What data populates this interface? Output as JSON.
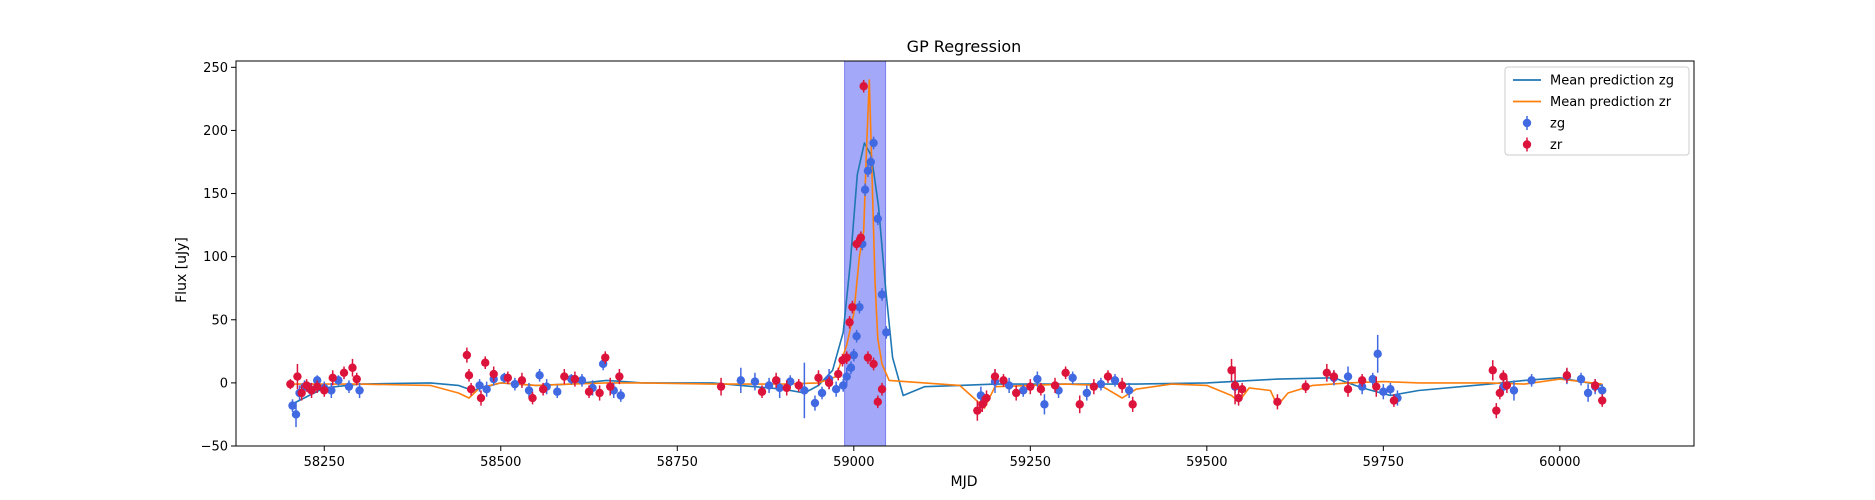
{
  "chart_data": {
    "type": "scatter",
    "title": "GP Regression",
    "xlabel": "MJD",
    "ylabel": "Flux [uJy]",
    "xlim": [
      58125,
      60190
    ],
    "ylim": [
      -50,
      255
    ],
    "xticks": [
      58250,
      58500,
      58750,
      59000,
      59250,
      59500,
      59750,
      60000
    ],
    "yticks": [
      -50,
      0,
      50,
      100,
      150,
      200,
      250
    ],
    "grid": false,
    "legend_position": "top-right",
    "highlight_region": {
      "x0": 58987,
      "x1": 59045,
      "color": "#a4a8f8"
    },
    "series": [
      {
        "name": "Mean prediction zg",
        "kind": "line",
        "color": "#1f77b4",
        "x": [
          58200,
          58250,
          58300,
          58400,
          58440,
          58460,
          58480,
          58500,
          58550,
          58600,
          58650,
          58700,
          58800,
          58900,
          58930,
          58950,
          58970,
          58985,
          58995,
          59005,
          59015,
          59025,
          59035,
          59045,
          59055,
          59070,
          59100,
          59150,
          59200,
          59250,
          59300,
          59400,
          59500,
          59600,
          59680,
          59720,
          59760,
          59800,
          59900,
          59950,
          60000,
          60060
        ],
        "y": [
          -18,
          -4,
          -1,
          0,
          -2,
          -6,
          -3,
          0,
          -2,
          -1,
          2,
          0,
          0,
          -5,
          -8,
          -2,
          10,
          40,
          95,
          165,
          190,
          180,
          140,
          75,
          20,
          -10,
          -3,
          -2,
          -1,
          -1,
          -1,
          -1,
          0,
          3,
          4,
          -4,
          -10,
          -6,
          -1,
          2,
          4,
          -2
        ]
      },
      {
        "name": "Mean prediction zr",
        "kind": "line",
        "color": "#ff7f0e",
        "x": [
          58200,
          58300,
          58400,
          58440,
          58455,
          58470,
          58500,
          58550,
          58600,
          58650,
          58700,
          58800,
          58900,
          58950,
          58975,
          58990,
          59000,
          59008,
          59014,
          59018,
          59022,
          59026,
          59030,
          59034,
          59040,
          59050,
          59100,
          59150,
          59170,
          59185,
          59200,
          59250,
          59300,
          59350,
          59380,
          59400,
          59450,
          59500,
          59535,
          59545,
          59560,
          59590,
          59600,
          59615,
          59650,
          59700,
          59750,
          59800,
          59900,
          59950,
          60000,
          60060
        ],
        "y": [
          -1,
          -1,
          -2,
          -8,
          -12,
          -4,
          0,
          -2,
          -1,
          0,
          0,
          -1,
          -1,
          0,
          5,
          30,
          55,
          100,
          120,
          185,
          240,
          160,
          80,
          35,
          15,
          2,
          0,
          -2,
          -12,
          -20,
          -3,
          -2,
          -1,
          -2,
          -12,
          -5,
          -1,
          -2,
          -10,
          -15,
          -4,
          -6,
          -18,
          -8,
          -2,
          0,
          1,
          0,
          0,
          -1,
          3,
          -1
        ]
      },
      {
        "name": "zg",
        "kind": "errorbar",
        "color": "#4169e1",
        "x": [
          58205,
          58210,
          58215,
          58222,
          58230,
          58240,
          58250,
          58260,
          58270,
          58285,
          58300,
          58470,
          58480,
          58490,
          58505,
          58520,
          58540,
          58555,
          58565,
          58580,
          58600,
          58615,
          58630,
          58645,
          58660,
          58670,
          58840,
          58860,
          58880,
          58895,
          58910,
          58930,
          58945,
          58955,
          58965,
          58975,
          58985,
          58990,
          58996,
          59000,
          59004,
          59008,
          59012,
          59016,
          59020,
          59024,
          59028,
          59034,
          59040,
          59046,
          59180,
          59200,
          59220,
          59240,
          59260,
          59270,
          59290,
          59310,
          59330,
          59350,
          59370,
          59390,
          59540,
          59680,
          59700,
          59720,
          59735,
          59742,
          59750,
          59760,
          59770,
          59920,
          59935,
          59960,
          60010,
          60030,
          60040,
          60050,
          60060
        ],
        "y": [
          -18,
          -25,
          -8,
          -3,
          -5,
          2,
          -4,
          -6,
          2,
          -3,
          -6,
          -2,
          -5,
          3,
          4,
          -1,
          -6,
          6,
          -3,
          -7,
          3,
          2,
          -4,
          15,
          -6,
          -10,
          2,
          1,
          -2,
          -4,
          1,
          -6,
          -16,
          -8,
          3,
          -5,
          -2,
          5,
          12,
          22,
          37,
          60,
          110,
          153,
          168,
          175,
          190,
          130,
          70,
          40,
          -10,
          1,
          -2,
          -6,
          3,
          -17,
          -6,
          4,
          -8,
          -1,
          2,
          -6,
          -3,
          4,
          5,
          -3,
          3,
          23,
          -7,
          -5,
          -12,
          -3,
          -6,
          2,
          5,
          3,
          -8,
          -3,
          -6
        ],
        "err": [
          5,
          10,
          6,
          5,
          5,
          4,
          5,
          6,
          4,
          5,
          6,
          5,
          6,
          5,
          4,
          5,
          6,
          5,
          6,
          5,
          4,
          5,
          6,
          5,
          6,
          5,
          10,
          7,
          6,
          8,
          5,
          22,
          6,
          5,
          8,
          6,
          5,
          7,
          5,
          5,
          5,
          5,
          5,
          5,
          5,
          5,
          5,
          5,
          5,
          5,
          7,
          9,
          6,
          5,
          6,
          8,
          6,
          5,
          6,
          5,
          5,
          6,
          5,
          6,
          8,
          6,
          5,
          15,
          6,
          5,
          6,
          6,
          8,
          5,
          6,
          5,
          7,
          6,
          5
        ]
      },
      {
        "name": "zr",
        "kind": "errorbar",
        "color": "#dc143c",
        "x": [
          58202,
          58212,
          58218,
          58225,
          58232,
          58240,
          58250,
          58262,
          58278,
          58290,
          58296,
          58452,
          58455,
          58458,
          58472,
          58478,
          58490,
          58510,
          58530,
          58545,
          58560,
          58590,
          58605,
          58625,
          58640,
          58648,
          58655,
          58668,
          58812,
          58870,
          58890,
          58905,
          58922,
          58950,
          58965,
          58978,
          58984,
          58990,
          58994,
          58998,
          59004,
          59010,
          59014,
          59020,
          59028,
          59034,
          59040,
          59175,
          59182,
          59188,
          59200,
          59212,
          59230,
          59250,
          59265,
          59285,
          59300,
          59320,
          59340,
          59360,
          59380,
          59395,
          59535,
          59540,
          59545,
          59550,
          59600,
          59640,
          59670,
          59680,
          59700,
          59720,
          59740,
          59765,
          59905,
          59910,
          59915,
          59920,
          59925,
          60010,
          60050,
          60060
        ],
        "y": [
          -1,
          5,
          -8,
          -2,
          -6,
          -3,
          -6,
          4,
          8,
          12,
          3,
          22,
          6,
          -5,
          -12,
          16,
          7,
          4,
          2,
          -12,
          -5,
          5,
          3,
          -7,
          -8,
          20,
          -3,
          5,
          -3,
          -7,
          2,
          -4,
          -2,
          4,
          0,
          7,
          18,
          20,
          48,
          60,
          110,
          115,
          235,
          20,
          15,
          -15,
          -5,
          -22,
          -17,
          -12,
          5,
          2,
          -8,
          -3,
          -5,
          -2,
          8,
          -17,
          -3,
          5,
          -2,
          -17,
          10,
          -2,
          -12,
          -5,
          -15,
          -3,
          8,
          5,
          -5,
          2,
          -3,
          -14,
          10,
          -22,
          -8,
          5,
          -2,
          6,
          -2,
          -14
        ],
        "err": [
          4,
          10,
          6,
          5,
          6,
          5,
          5,
          6,
          5,
          7,
          5,
          6,
          5,
          5,
          6,
          5,
          6,
          5,
          6,
          5,
          5,
          6,
          6,
          5,
          6,
          5,
          7,
          6,
          7,
          5,
          6,
          6,
          5,
          6,
          5,
          5,
          5,
          5,
          5,
          5,
          5,
          5,
          5,
          5,
          5,
          5,
          5,
          8,
          6,
          6,
          6,
          5,
          6,
          6,
          5,
          6,
          5,
          7,
          6,
          5,
          6,
          6,
          9,
          15,
          6,
          5,
          6,
          5,
          7,
          5,
          6,
          5,
          8,
          5,
          8,
          6,
          5,
          5,
          6,
          6,
          5,
          5
        ]
      }
    ]
  }
}
